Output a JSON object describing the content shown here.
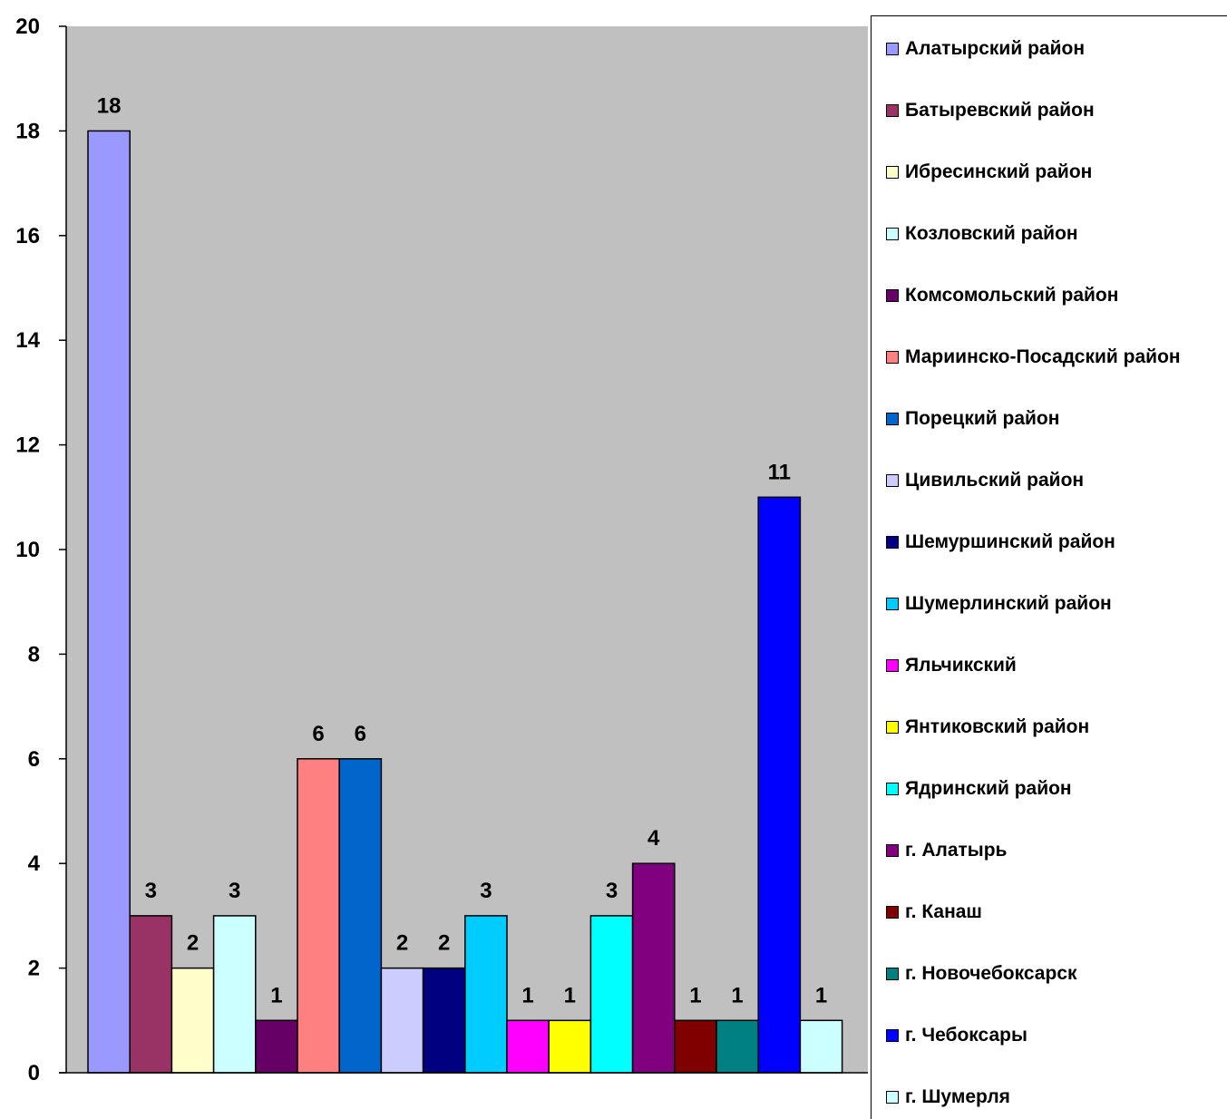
{
  "chart_data": {
    "type": "bar",
    "categories": [
      "Алатырский район",
      "Батыревский район",
      "Ибресинский район",
      "Козловский район",
      "Комсомольский район",
      "Мариинско-Посадский район",
      "Порецкий район",
      "Цивильский район",
      "Шемуршинский район",
      "Шумерлинский район",
      "Яльчикский",
      "Янтиковский район",
      "Ядринский район",
      "г. Алатырь",
      "г. Канаш",
      "г. Новочебоксарск",
      "г. Чебоксары",
      "г. Шумерля"
    ],
    "values": [
      18,
      3,
      2,
      3,
      1,
      6,
      6,
      2,
      2,
      3,
      1,
      1,
      3,
      4,
      1,
      1,
      11,
      1
    ],
    "colors": [
      "#9999FF",
      "#993366",
      "#FFFFCC",
      "#CCFFFF",
      "#660066",
      "#FF8080",
      "#0066CC",
      "#CCCCFF",
      "#000080",
      "#00CCFF",
      "#FF00FF",
      "#FFFF00",
      "#00FFFF",
      "#800080",
      "#800000",
      "#008080",
      "#0000FF",
      "#CCFFFF"
    ],
    "yticks": [
      "0",
      "2",
      "4",
      "6",
      "8",
      "10",
      "12",
      "14",
      "16",
      "18",
      "20"
    ],
    "ylim": [
      0,
      20
    ],
    "plot_background": "#C0C0C0",
    "grid": false,
    "legend_position": "right",
    "title": "",
    "xlabel": "",
    "ylabel": ""
  }
}
